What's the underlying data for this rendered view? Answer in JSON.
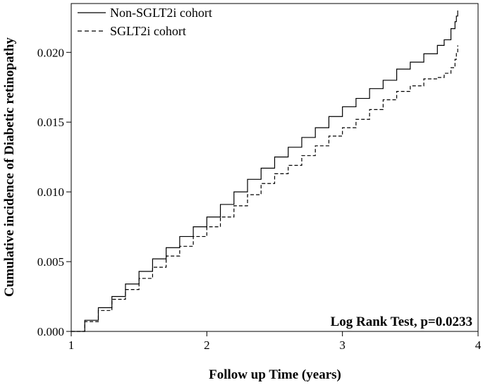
{
  "chart_data": {
    "type": "line",
    "title": "",
    "xlabel": "Follow up Time (years)",
    "ylabel": "Cumulative incidence of Diabetic retinopathy",
    "xlim": [
      1,
      4
    ],
    "ylim": [
      0,
      0.0235
    ],
    "x_ticks": [
      1,
      2,
      3,
      4
    ],
    "x_tick_labels": [
      "1",
      "2",
      "3",
      "4"
    ],
    "y_ticks": [
      0,
      0.005,
      0.01,
      0.015,
      0.02
    ],
    "y_tick_labels": [
      "0.000",
      "0.005",
      "0.010",
      "0.015",
      "0.020"
    ],
    "grid": false,
    "legend_position": "top-left",
    "annotation": "Log Rank Test, p=0.0233",
    "series": [
      {
        "name": "Non-SGLT2i cohort",
        "style": "solid",
        "color": "#000000",
        "x": [
          1.0,
          1.1,
          1.2,
          1.3,
          1.4,
          1.5,
          1.6,
          1.7,
          1.8,
          1.9,
          2.0,
          2.1,
          2.2,
          2.3,
          2.4,
          2.5,
          2.6,
          2.7,
          2.8,
          2.9,
          3.0,
          3.1,
          3.2,
          3.3,
          3.4,
          3.5,
          3.6,
          3.7,
          3.75,
          3.8,
          3.83,
          3.84,
          3.85
        ],
        "y": [
          0.0,
          0.0008,
          0.0017,
          0.0025,
          0.0034,
          0.0043,
          0.0052,
          0.006,
          0.0068,
          0.0075,
          0.0082,
          0.0091,
          0.01,
          0.0109,
          0.0117,
          0.0125,
          0.0132,
          0.0139,
          0.0146,
          0.0154,
          0.0161,
          0.0167,
          0.0174,
          0.018,
          0.0188,
          0.0193,
          0.0199,
          0.0205,
          0.0209,
          0.0217,
          0.0222,
          0.0226,
          0.023
        ]
      },
      {
        "name": "SGLT2i cohort",
        "style": "dashed",
        "color": "#000000",
        "x": [
          1.0,
          1.1,
          1.2,
          1.3,
          1.4,
          1.5,
          1.6,
          1.7,
          1.8,
          1.9,
          2.0,
          2.1,
          2.2,
          2.3,
          2.4,
          2.5,
          2.6,
          2.7,
          2.8,
          2.9,
          3.0,
          3.1,
          3.2,
          3.3,
          3.4,
          3.5,
          3.6,
          3.7,
          3.75,
          3.8,
          3.83,
          3.84,
          3.85
        ],
        "y": [
          0.0,
          0.0007,
          0.0015,
          0.0023,
          0.003,
          0.0038,
          0.0046,
          0.0054,
          0.0061,
          0.0068,
          0.0075,
          0.0082,
          0.009,
          0.0098,
          0.0106,
          0.0113,
          0.0119,
          0.0126,
          0.0133,
          0.014,
          0.0146,
          0.0152,
          0.0159,
          0.0166,
          0.0172,
          0.0176,
          0.0181,
          0.0182,
          0.0185,
          0.0189,
          0.0195,
          0.02,
          0.0205
        ]
      }
    ]
  }
}
